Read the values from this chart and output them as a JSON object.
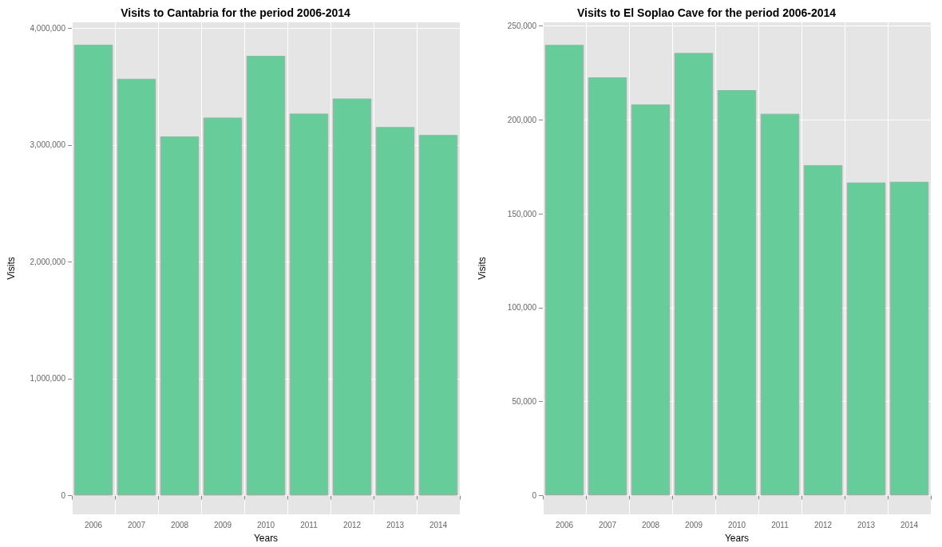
{
  "chart_data": [
    {
      "type": "bar",
      "title": "Visits to Cantabria for the period 2006-2014",
      "xlabel": "Years",
      "ylabel": "Visits",
      "categories": [
        "2006",
        "2007",
        "2008",
        "2009",
        "2010",
        "2011",
        "2012",
        "2013",
        "2014"
      ],
      "values": [
        3858000,
        3567000,
        3073000,
        3235000,
        3763000,
        3269000,
        3398000,
        3154000,
        3086000
      ],
      "color": "#66cc99",
      "ylim": [
        -160000,
        4050000
      ],
      "yticks": [
        {
          "value": 0,
          "label": "0"
        },
        {
          "value": 1000000,
          "label": "1,000,000"
        },
        {
          "value": 2000000,
          "label": "2,000,000"
        },
        {
          "value": 3000000,
          "label": "3,000,000"
        },
        {
          "value": 4000000,
          "label": "4,000,000"
        }
      ],
      "grid": true
    },
    {
      "type": "bar",
      "title": "Visits to El Soplao Cave for the period 2006-2014",
      "xlabel": "Years",
      "ylabel": "Visits",
      "categories": [
        "2006",
        "2007",
        "2008",
        "2009",
        "2010",
        "2011",
        "2012",
        "2013",
        "2014"
      ],
      "values": [
        240000,
        222700,
        208300,
        235700,
        215900,
        203300,
        175900,
        166700,
        167100
      ],
      "color": "#66cc99",
      "ylim": [
        -10000,
        252000
      ],
      "yticks": [
        {
          "value": 0,
          "label": "0"
        },
        {
          "value": 50000,
          "label": "50,000"
        },
        {
          "value": 100000,
          "label": "100,000"
        },
        {
          "value": 150000,
          "label": "150,000"
        },
        {
          "value": 200000,
          "label": "200,000"
        },
        {
          "value": 250000,
          "label": "250,000"
        }
      ],
      "grid": true
    }
  ]
}
